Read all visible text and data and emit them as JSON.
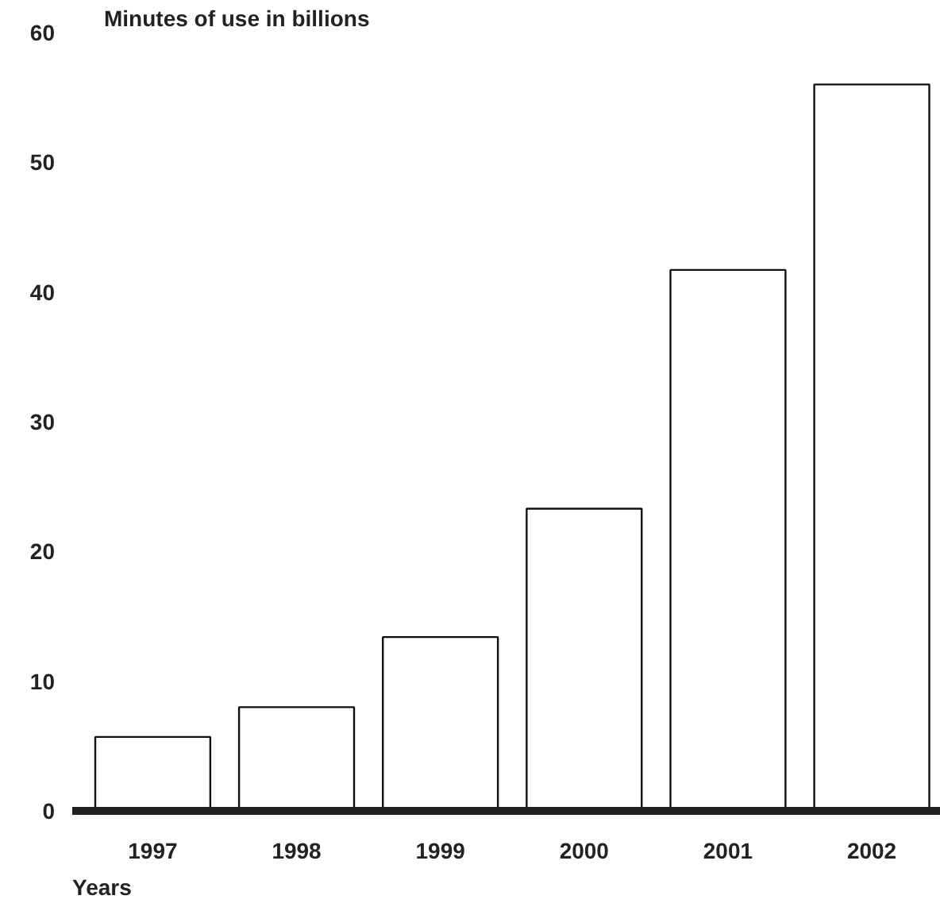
{
  "chart_data": {
    "type": "bar",
    "ylabel": "Minutes of use in billions",
    "xlabel": "Years",
    "categories": [
      "1997",
      "1998",
      "1999",
      "2000",
      "2001",
      "2002"
    ],
    "values": [
      5.7,
      8.0,
      13.4,
      23.3,
      41.7,
      56.0
    ],
    "color": "#ffffff",
    "ylim": [
      0,
      60
    ],
    "yticks": [
      0,
      10,
      20,
      30,
      40,
      50,
      60
    ],
    "grid": false
  }
}
